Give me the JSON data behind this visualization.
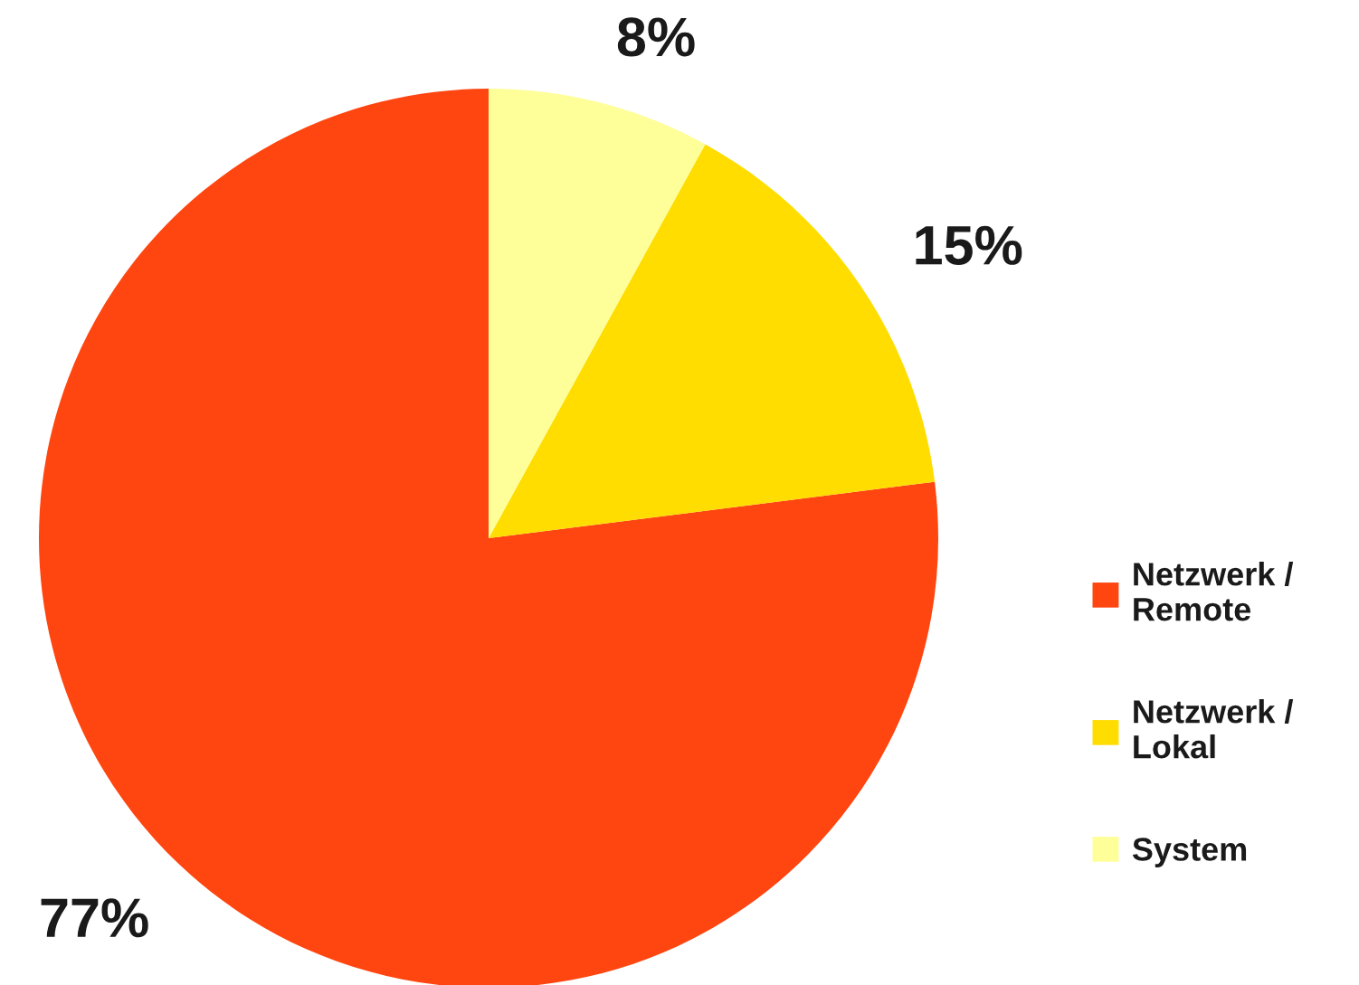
{
  "chart_data": {
    "type": "pie",
    "categories": [
      "Netzwerk / Remote",
      "Netzwerk / Lokal",
      "System"
    ],
    "values": [
      77,
      15,
      8
    ],
    "colors": [
      "#ff4510",
      "#ffdd00",
      "#ffff99"
    ],
    "value_labels": [
      "77%",
      "15%",
      "8%"
    ],
    "legend": "right"
  }
}
